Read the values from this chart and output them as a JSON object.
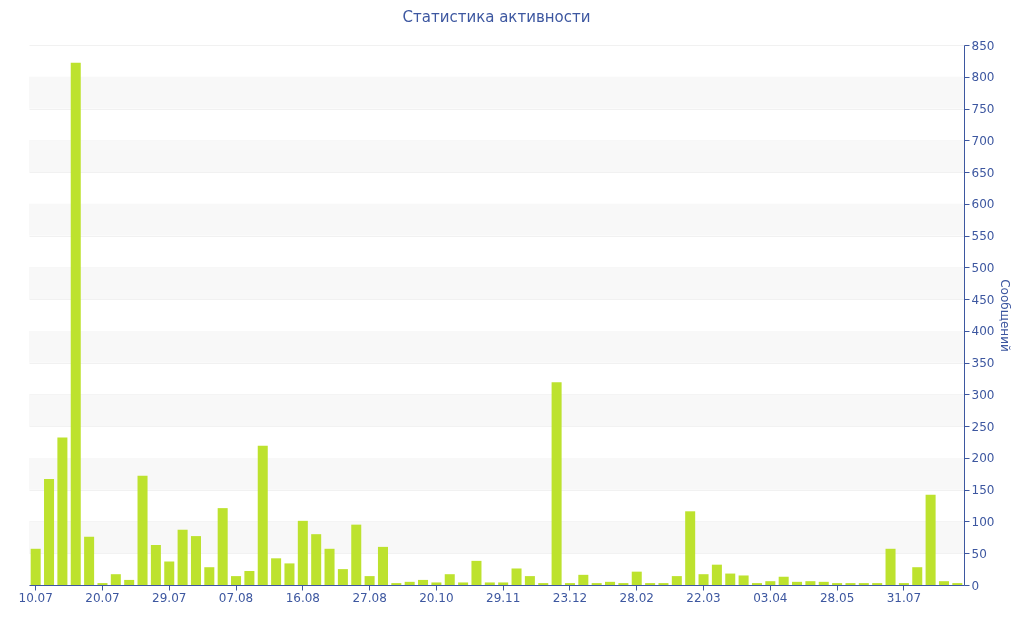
{
  "chart_data": {
    "type": "bar",
    "title": "Статистика активности",
    "ylabel": "Сообщений",
    "categories": [
      "10.07",
      null,
      null,
      null,
      null,
      "20.07",
      null,
      null,
      null,
      null,
      "29.07",
      null,
      null,
      null,
      null,
      "07.08",
      null,
      null,
      null,
      null,
      "16.08",
      null,
      null,
      null,
      null,
      "27.08",
      null,
      null,
      null,
      null,
      "20.10",
      null,
      null,
      null,
      null,
      "29.11",
      null,
      null,
      null,
      null,
      "23.12",
      null,
      null,
      null,
      null,
      "28.02",
      null,
      null,
      null,
      null,
      "22.03",
      null,
      null,
      null,
      null,
      "03.04",
      null,
      null,
      null,
      null,
      "28.05",
      null,
      null,
      null,
      null,
      "31.07",
      null,
      null,
      null,
      null
    ],
    "values": [
      57,
      167,
      232,
      822,
      76,
      3,
      17,
      8,
      172,
      63,
      37,
      87,
      77,
      28,
      121,
      14,
      22,
      219,
      42,
      34,
      101,
      80,
      57,
      25,
      95,
      14,
      60,
      3,
      5,
      8,
      4,
      17,
      4,
      38,
      4,
      4,
      26,
      14,
      3,
      319,
      3,
      16,
      3,
      5,
      3,
      21,
      3,
      3,
      14,
      116,
      17,
      32,
      18,
      15,
      3,
      6,
      13,
      5,
      6,
      5,
      3,
      3,
      3,
      3,
      57,
      3,
      28,
      142,
      6,
      3
    ],
    "color": "#bde22e",
    "ylim": [
      0,
      850
    ],
    "yticks": [
      0,
      50,
      100,
      150,
      200,
      250,
      300,
      350,
      400,
      450,
      500,
      550,
      600,
      650,
      700,
      750,
      800,
      850
    ],
    "grid": "y"
  }
}
